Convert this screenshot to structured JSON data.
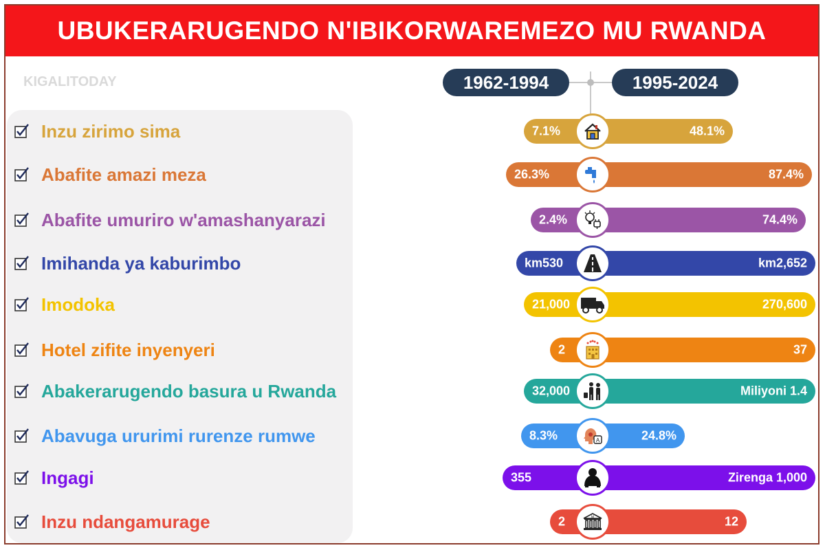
{
  "header": {
    "title": "UBUKERARUGENDO N'IBIKORWAREMEZO MU RWANDA"
  },
  "watermark": "KIGALITODAY",
  "periods": {
    "left": "1962-1994",
    "right": "1995-2024"
  },
  "colors": {
    "header_bg": "#f4161a",
    "period_bg": "#263c57",
    "panel_bg": "#f2f1f2"
  },
  "chart_data": {
    "type": "table",
    "columns": [
      "1962-1994",
      "1995-2024"
    ],
    "rows": [
      {
        "label": "Inzu zirimo sima",
        "before": "7.1%",
        "after": "48.1%",
        "icon": "house-icon",
        "color": "#d7a43c"
      },
      {
        "label": "Abafite amazi meza",
        "before": "26.3%",
        "after": "87.4%",
        "icon": "water-tap-icon",
        "color": "#da7736"
      },
      {
        "label": "Abafite umuriro w'amashanyarazi",
        "before": "2.4%",
        "after": "74.4%",
        "icon": "lightbulb-plug-icon",
        "color": "#9b55a6"
      },
      {
        "label": "Imihanda ya kaburimbo",
        "before": "km530",
        "after": "km2,652",
        "icon": "road-icon",
        "color": "#3347a8"
      },
      {
        "label": "Imodoka",
        "before": "21,000",
        "after": "270,600",
        "icon": "truck-icon",
        "color": "#f3c300"
      },
      {
        "label": "Hotel zifite inyenyeri",
        "before": "2",
        "after": "37",
        "icon": "hotel-icon",
        "color": "#ee8413"
      },
      {
        "label": "Abakerarugendo basura u Rwanda",
        "before": "32,000",
        "after": "Miliyoni 1.4",
        "icon": "tourists-icon",
        "color": "#25a79b"
      },
      {
        "label": "Abavuga ururimi rurenze rumwe",
        "before": "8.3%",
        "after": "24.8%",
        "icon": "speaking-head-icon",
        "color": "#4196ee"
      },
      {
        "label": "Ingagi",
        "before": "355",
        "after": "Zirenga 1,000",
        "icon": "gorilla-icon",
        "color": "#7c10ea"
      },
      {
        "label": "Inzu ndangamurage",
        "before": "2",
        "after": "12",
        "icon": "museum-icon",
        "color": "#e74c3c"
      }
    ]
  }
}
